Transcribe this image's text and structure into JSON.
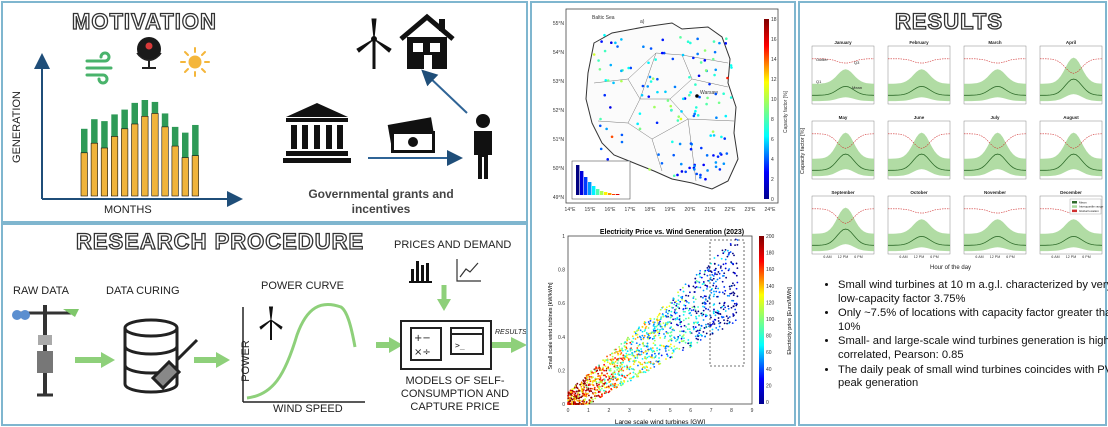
{
  "motivation": {
    "title": "MOTIVATION",
    "y_axis": "GENERATION",
    "x_axis": "MONTHS",
    "grants": "Governmental grants and incentives",
    "bars": [
      {
        "total": 0.7,
        "yellow": 0.45
      },
      {
        "total": 0.8,
        "yellow": 0.55
      },
      {
        "total": 0.78,
        "yellow": 0.5
      },
      {
        "total": 0.85,
        "yellow": 0.62
      },
      {
        "total": 0.9,
        "yellow": 0.7
      },
      {
        "total": 0.97,
        "yellow": 0.75
      },
      {
        "total": 1.0,
        "yellow": 0.83
      },
      {
        "total": 0.98,
        "yellow": 0.86
      },
      {
        "total": 0.86,
        "yellow": 0.72
      },
      {
        "total": 0.72,
        "yellow": 0.52
      },
      {
        "total": 0.66,
        "yellow": 0.4
      },
      {
        "total": 0.74,
        "yellow": 0.42
      }
    ],
    "colors": {
      "green": "#2e9a57",
      "yellow": "#f0b43c"
    }
  },
  "procedure": {
    "title": "RESEARCH PROCEDURE",
    "raw_data": "RAW DATA",
    "data_curing": "DATA CURING",
    "power_curve": "POWER CURVE",
    "power": "POWER",
    "wind_speed": "WIND SPEED",
    "prices_demand": "PRICES AND DEMAND",
    "models": [
      "MODELS OF SELF-",
      "CONSUMPTION AND",
      "CAPTURE PRICE"
    ],
    "results_arrow": "RESULTS",
    "arrow_color": "#8ed07a"
  },
  "map": {
    "label_a": "a)",
    "capital": "Warsaw",
    "colorbar_label": "Capacity factor [%]",
    "lon_ticks": [
      "14°E",
      "15°E",
      "16°E",
      "17°E",
      "18°E",
      "19°E",
      "20°E",
      "21°E",
      "22°E",
      "23°E",
      "24°E"
    ],
    "lat_ticks": [
      "55°N",
      "54°N",
      "53°N",
      "52°N",
      "51°N",
      "50°N",
      "49°N"
    ],
    "cbar_ticks": [
      "18",
      "16",
      "14",
      "12",
      "10",
      "8",
      "6",
      "4",
      "2",
      "0"
    ]
  },
  "scatter": {
    "title": "Electricity Price vs. Wind Generation (2023)",
    "label": "b)",
    "xlabel": "Large scale wind turbines [GW]",
    "ylabel": "Small scale wind turbines [kW/kWh]",
    "cbar_label": "Electricity price [Euro/MWh]",
    "x_ticks": [
      "0",
      "1",
      "2",
      "3",
      "4",
      "5",
      "6",
      "7",
      "8",
      "9"
    ],
    "y_ticks": [
      "0",
      "0.2",
      "0.4",
      "0.6",
      "0.8",
      "1"
    ],
    "cbar_ticks": [
      "200",
      "180",
      "160",
      "140",
      "120",
      "100",
      "80",
      "60",
      "40",
      "20",
      "0"
    ]
  },
  "results": {
    "title": "RESULTS",
    "months": [
      "January",
      "February",
      "March",
      "April",
      "May",
      "June",
      "July",
      "August",
      "September",
      "October",
      "November",
      "December"
    ],
    "ylabel": "Capacity factor [%]",
    "xlabel": "Hour of the day",
    "hour_ticks": [
      "6 AM",
      "12 PM",
      "6 PM"
    ],
    "annot": [
      "Outlier",
      "Q3",
      "Q1",
      "Mean"
    ],
    "legend": [
      "Mean",
      "Interquartile range",
      "Global location"
    ],
    "bullets": [
      "Small wind turbines at 10 m a.g.l. characterized by very low-capacity factor 3.75%",
      "Only ~7.5% of locations with capacity factor greater than 10%",
      "Small- and large-scale wind turbines generation is highly correlated, Pearson: 0.85",
      "The daily peak of small wind turbines coincides with PV peak generation"
    ]
  }
}
